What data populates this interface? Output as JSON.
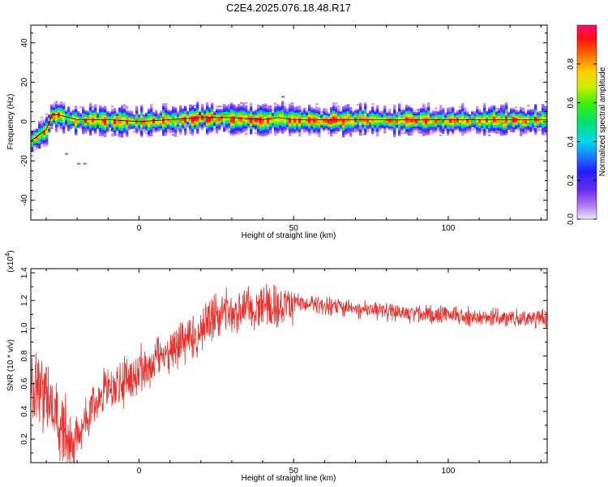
{
  "title": "C2E4.2025.076.18.48.R17",
  "colors": {
    "snr_line": "#e8312d",
    "axis": "#000000"
  },
  "chart_data": [
    {
      "type": "heatmap",
      "name": "spectrogram",
      "xlabel": "Height of straight line (km)",
      "ylabel": "Frequency (Hz)",
      "xlim": [
        -35,
        132
      ],
      "ylim": [
        -50,
        49
      ],
      "xticks": [
        0,
        50,
        100
      ],
      "yticks": [
        -40,
        -20,
        0,
        20,
        40
      ],
      "xtick_labels": [
        "0",
        "50",
        "100"
      ],
      "ytick_labels": [
        "-40",
        "-20",
        "0",
        "20",
        "40"
      ],
      "colorbar": {
        "label": "Normalized spectral amplitude",
        "range": [
          0,
          1
        ],
        "ticks": [
          0.0,
          0.2,
          0.4,
          0.6,
          0.8
        ],
        "tick_labels": [
          "0.0",
          "0.2",
          "0.4",
          "0.6",
          "0.8"
        ]
      },
      "ridge": {
        "x": [
          -35,
          -30,
          -28,
          -25,
          -20,
          -10,
          0,
          10,
          20,
          30,
          40,
          45,
          50,
          60,
          70,
          80,
          90,
          100,
          110,
          120,
          132
        ],
        "y": [
          -10,
          -4,
          4,
          3,
          1,
          1,
          0,
          1,
          2,
          2,
          1,
          2,
          1,
          1,
          1,
          1,
          1,
          1,
          1,
          1,
          1
        ]
      }
    },
    {
      "type": "line",
      "name": "snr",
      "xlabel": "Height of straight line (km)",
      "ylabel": "SNR (10 * v/v)",
      "scale_label": "(x10",
      "scale_exp": "4",
      "scale_close": ")",
      "xlim": [
        -35,
        132
      ],
      "ylim": [
        0.03,
        1.43
      ],
      "xticks": [
        0,
        50,
        100
      ],
      "yticks": [
        0.2,
        0.4,
        0.6,
        0.8,
        1.0,
        1.2,
        1.4
      ],
      "xtick_labels": [
        "0",
        "50",
        "100"
      ],
      "ytick_labels": [
        "0.2",
        "0.4",
        "0.6",
        "0.8",
        "1.0",
        "1.2",
        "1.4"
      ],
      "trend": {
        "x": [
          -35,
          -30,
          -25,
          -22,
          -20,
          -15,
          -10,
          -5,
          0,
          5,
          10,
          15,
          20,
          25,
          30,
          35,
          40,
          45,
          50,
          60,
          70,
          80,
          90,
          100,
          110,
          120,
          132
        ],
        "y": [
          0.65,
          0.5,
          0.3,
          0.18,
          0.2,
          0.45,
          0.55,
          0.6,
          0.7,
          0.75,
          0.85,
          0.9,
          1.0,
          1.1,
          1.12,
          1.15,
          1.15,
          1.15,
          1.18,
          1.16,
          1.14,
          1.12,
          1.1,
          1.1,
          1.08,
          1.07,
          1.07
        ]
      }
    }
  ]
}
